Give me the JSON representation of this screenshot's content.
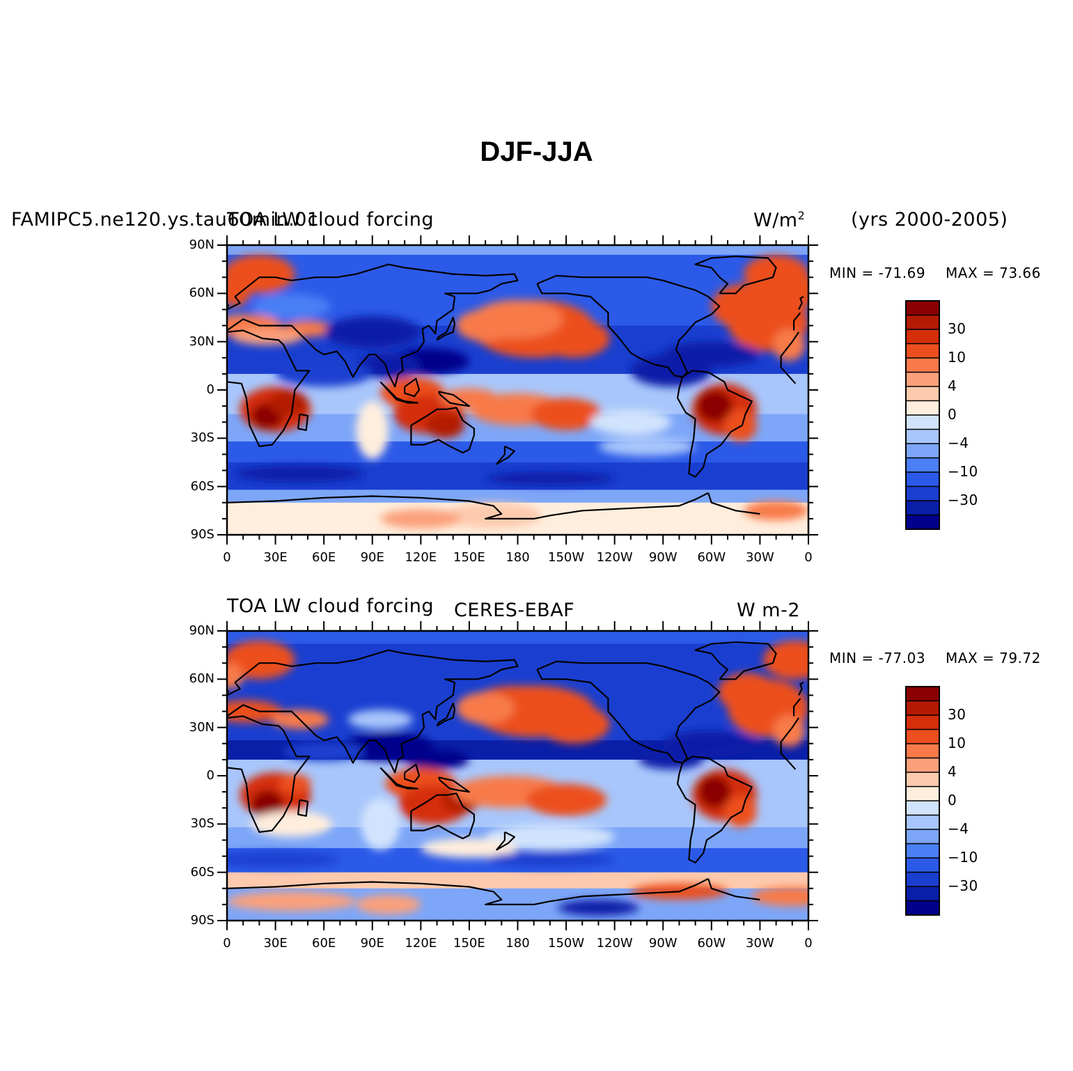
{
  "title": "DJF-JJA",
  "colors": [
    "#00008b",
    "#0a1fa8",
    "#1a3fd0",
    "#2c5ae8",
    "#4a7ff5",
    "#7da6f8",
    "#a8c6fb",
    "#d2e4fd",
    "#ffeedd",
    "#fdcaae",
    "#fba07a",
    "#f87a4a",
    "#ec4f1f",
    "#d42e0a",
    "#b31a03",
    "#8b0000"
  ],
  "colorbar_labels": [
    "30",
    "10",
    "4",
    "0",
    "-4",
    "-10",
    "-30"
  ],
  "panels": [
    {
      "case_label": "FAMIPC5.ne120.ys.tau60min.01",
      "variable_label": "TOA LW cloud forcing",
      "center_label": "",
      "units_label": "W/m",
      "units_sup": "2",
      "years_label": "(yrs 2000-2005)",
      "min_label": "MIN = -71.69",
      "max_label": "MAX =  73.66"
    },
    {
      "case_label": "",
      "variable_label": "TOA LW cloud forcing",
      "center_label": "CERES-EBAF",
      "units_label": "W m-2",
      "units_sup": "",
      "years_label": "",
      "min_label": "MIN = -77.03",
      "max_label": "MAX =  79.72"
    }
  ],
  "lon_ticks": [
    "0",
    "30E",
    "60E",
    "90E",
    "120E",
    "150E",
    "180",
    "150W",
    "120W",
    "90W",
    "60W",
    "30W",
    "0"
  ],
  "lat_ticks": [
    "90N",
    "60N",
    "30N",
    "0",
    "30S",
    "60S",
    "90S"
  ],
  "chart_data": {
    "type": "heatmap",
    "title": "DJF-JJA",
    "variable": "TOA LW cloud forcing",
    "units": "W/m2",
    "x_range": [
      0,
      360
    ],
    "y_range": [
      -90,
      90
    ],
    "colorbar_levels": [
      -30,
      -10,
      -4,
      0,
      4,
      10,
      30
    ],
    "panels": [
      {
        "name": "FAMIPC5.ne120.ys.tau60min.01",
        "years": "2000-2005",
        "min": -71.69,
        "max": 73.66
      },
      {
        "name": "CERES-EBAF",
        "min": -77.03,
        "max": 79.72
      }
    ]
  }
}
